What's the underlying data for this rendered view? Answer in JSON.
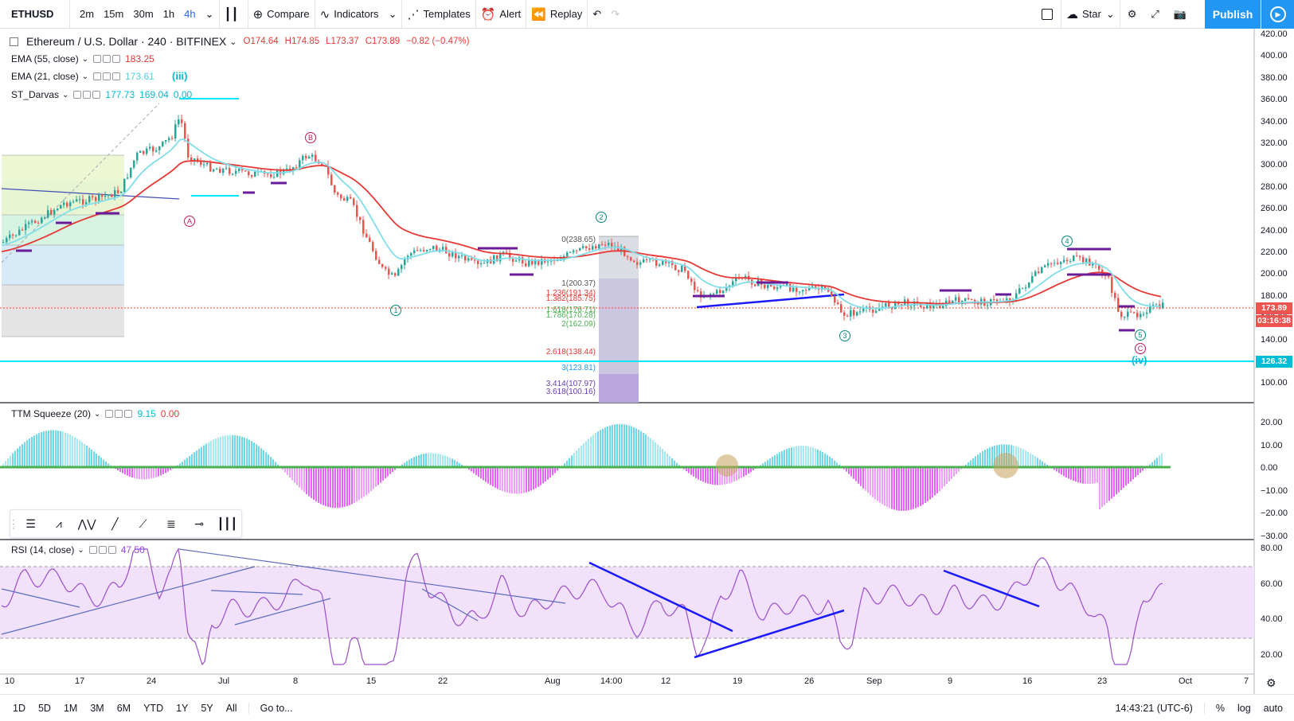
{
  "symbol": "ETHUSD",
  "toolbar": {
    "intervals": [
      "2m",
      "15m",
      "30m",
      "1h",
      "4h"
    ],
    "active_interval": "4h",
    "compare": "Compare",
    "indicators": "Indicators",
    "templates": "Templates",
    "alert": "Alert",
    "replay": "Replay",
    "layout": "Star",
    "publish": "Publish"
  },
  "header": {
    "title": "Ethereum / U.S. Dollar · 240 · BITFINEX",
    "open": "O174.64",
    "high": "H174.85",
    "low": "L173.37",
    "close": "C173.89",
    "change": "−0.82 (−0.47%)"
  },
  "indicators": [
    {
      "label": "EMA (55, close)",
      "values": [
        "183.25"
      ],
      "color": "#e53935"
    },
    {
      "label": "EMA (21, close)",
      "values": [
        "173.61"
      ],
      "color": "#80deea"
    },
    {
      "label": "ST_Darvas",
      "values": [
        "177.73",
        "169.04",
        "0.00"
      ],
      "color": "#00bcd4"
    }
  ],
  "ttm": {
    "label": "TTM Squeeze (20)",
    "v1": "9.15",
    "v2": "0.00"
  },
  "rsi": {
    "label": "RSI (14, close)",
    "value": "47.50"
  },
  "price_axis": [
    "420.00",
    "400.00",
    "380.00",
    "360.00",
    "340.00",
    "320.00",
    "300.00",
    "280.00",
    "260.00",
    "240.00",
    "220.00",
    "200.00",
    "180.00",
    "160.00",
    "140.00",
    "120.00",
    "100.00"
  ],
  "ttm_axis": [
    "20.00",
    "10.00",
    "0.00",
    "−10.00",
    "−20.00",
    "−30.00"
  ],
  "rsi_axis": [
    "80.00",
    "60.00",
    "40.00",
    "20.00"
  ],
  "price_tags": {
    "last": "173.89",
    "countdown": "03:16:38",
    "level": "126.32"
  },
  "fib_labels": [
    "0(238.65)",
    "1(200.37)",
    "1.236(191.34)",
    "1.382(185.75)",
    "1.618(176.71)",
    "1.786(170.28)",
    "2(162.09)",
    "2.618(138.44)",
    "3(123.81)",
    "3.414(107.97)",
    "3.618(100.16)"
  ],
  "wave_labels": {
    "iii": "(iii)",
    "iv": "(iv)",
    "A": "A",
    "B": "B",
    "C": "C",
    "c2": "2",
    "c4": "4",
    "c1": "1",
    "c3": "3",
    "c5": "5"
  },
  "time_axis": [
    "10",
    "17",
    "24",
    "Jul",
    "8",
    "15",
    "22",
    "Aug",
    "14:00",
    "12",
    "19",
    "26",
    "Sep",
    "9",
    "16",
    "23",
    "Oct",
    "7"
  ],
  "bottom": {
    "ranges": [
      "1D",
      "5D",
      "1M",
      "3M",
      "6M",
      "YTD",
      "1Y",
      "5Y",
      "All"
    ],
    "goto": "Go to...",
    "time": "14:43:21 (UTC-6)",
    "pct": "%",
    "log": "log",
    "auto": "auto"
  }
}
